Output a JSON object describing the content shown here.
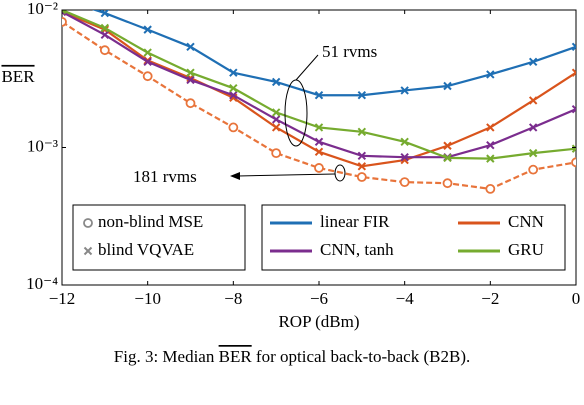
{
  "chart_data": {
    "type": "line",
    "log_y": true,
    "x_label": "ROP (dBm)",
    "y_label": "BER",
    "caption_prefix": "Fig. 3: Median ",
    "caption_ber": "BER",
    "caption_suffix": " for optical back-to-back (B2B).",
    "x": [
      -12,
      -11,
      -10,
      -9,
      -8,
      -7,
      -6,
      -5,
      -4,
      -3,
      -2,
      -1,
      0
    ],
    "xlim": [
      -12,
      0
    ],
    "xticks": [
      {
        "value": -12,
        "label": "−12"
      },
      {
        "value": -10,
        "label": "−10"
      },
      {
        "value": -8,
        "label": "−8"
      },
      {
        "value": -6,
        "label": "−6"
      },
      {
        "value": -4,
        "label": "−4"
      },
      {
        "value": -2,
        "label": "−2"
      },
      0
    ],
    "ylim": [
      0.0001,
      0.01
    ],
    "yticks": [
      {
        "value": 0.0001,
        "label": "10⁻⁴"
      },
      {
        "value": 0.001,
        "label": "10⁻³"
      },
      {
        "value": 0.01,
        "label": "10⁻²"
      }
    ],
    "series": [
      {
        "name": "linear FIR",
        "color": "#1f6fb4",
        "marker": "x",
        "values": [
          0.012,
          0.0095,
          0.0072,
          0.0054,
          0.0035,
          0.003,
          0.0024,
          0.0024,
          0.0026,
          0.0028,
          0.0034,
          0.0042,
          0.0054
        ]
      },
      {
        "name": "CNN",
        "color": "#d9541c",
        "marker": "x",
        "values": [
          0.0097,
          0.0072,
          0.0043,
          0.0032,
          0.0023,
          0.0014,
          0.00093,
          0.00073,
          0.00081,
          0.00103,
          0.0014,
          0.0022,
          0.0035
        ]
      },
      {
        "name": "CNN, tanh",
        "color": "#7b2d8e",
        "marker": "x",
        "values": [
          0.0097,
          0.0066,
          0.0042,
          0.0031,
          0.0024,
          0.0016,
          0.0011,
          0.00087,
          0.00085,
          0.00085,
          0.00104,
          0.0014,
          0.0019
        ]
      },
      {
        "name": "GRU",
        "color": "#76ab2f",
        "marker": "x",
        "values": [
          0.01,
          0.0074,
          0.0049,
          0.0035,
          0.0027,
          0.0018,
          0.0014,
          0.0013,
          0.0011,
          0.00084,
          0.00083,
          0.00091,
          0.00098
        ]
      },
      {
        "color": "#e8743b",
        "marker": "circle",
        "dashed": true,
        "values": [
          0.0082,
          0.0051,
          0.0033,
          0.0021,
          0.0014,
          0.00091,
          0.00071,
          0.00061,
          0.00056,
          0.00055,
          0.0005,
          0.00069,
          0.00078
        ]
      }
    ],
    "marker_legend": [
      {
        "label": "non-blind MSE",
        "marker": "circle"
      },
      {
        "label": "blind VQVAE",
        "marker": "x"
      }
    ],
    "annotations": [
      "51 rvms",
      "181 rvms"
    ]
  }
}
